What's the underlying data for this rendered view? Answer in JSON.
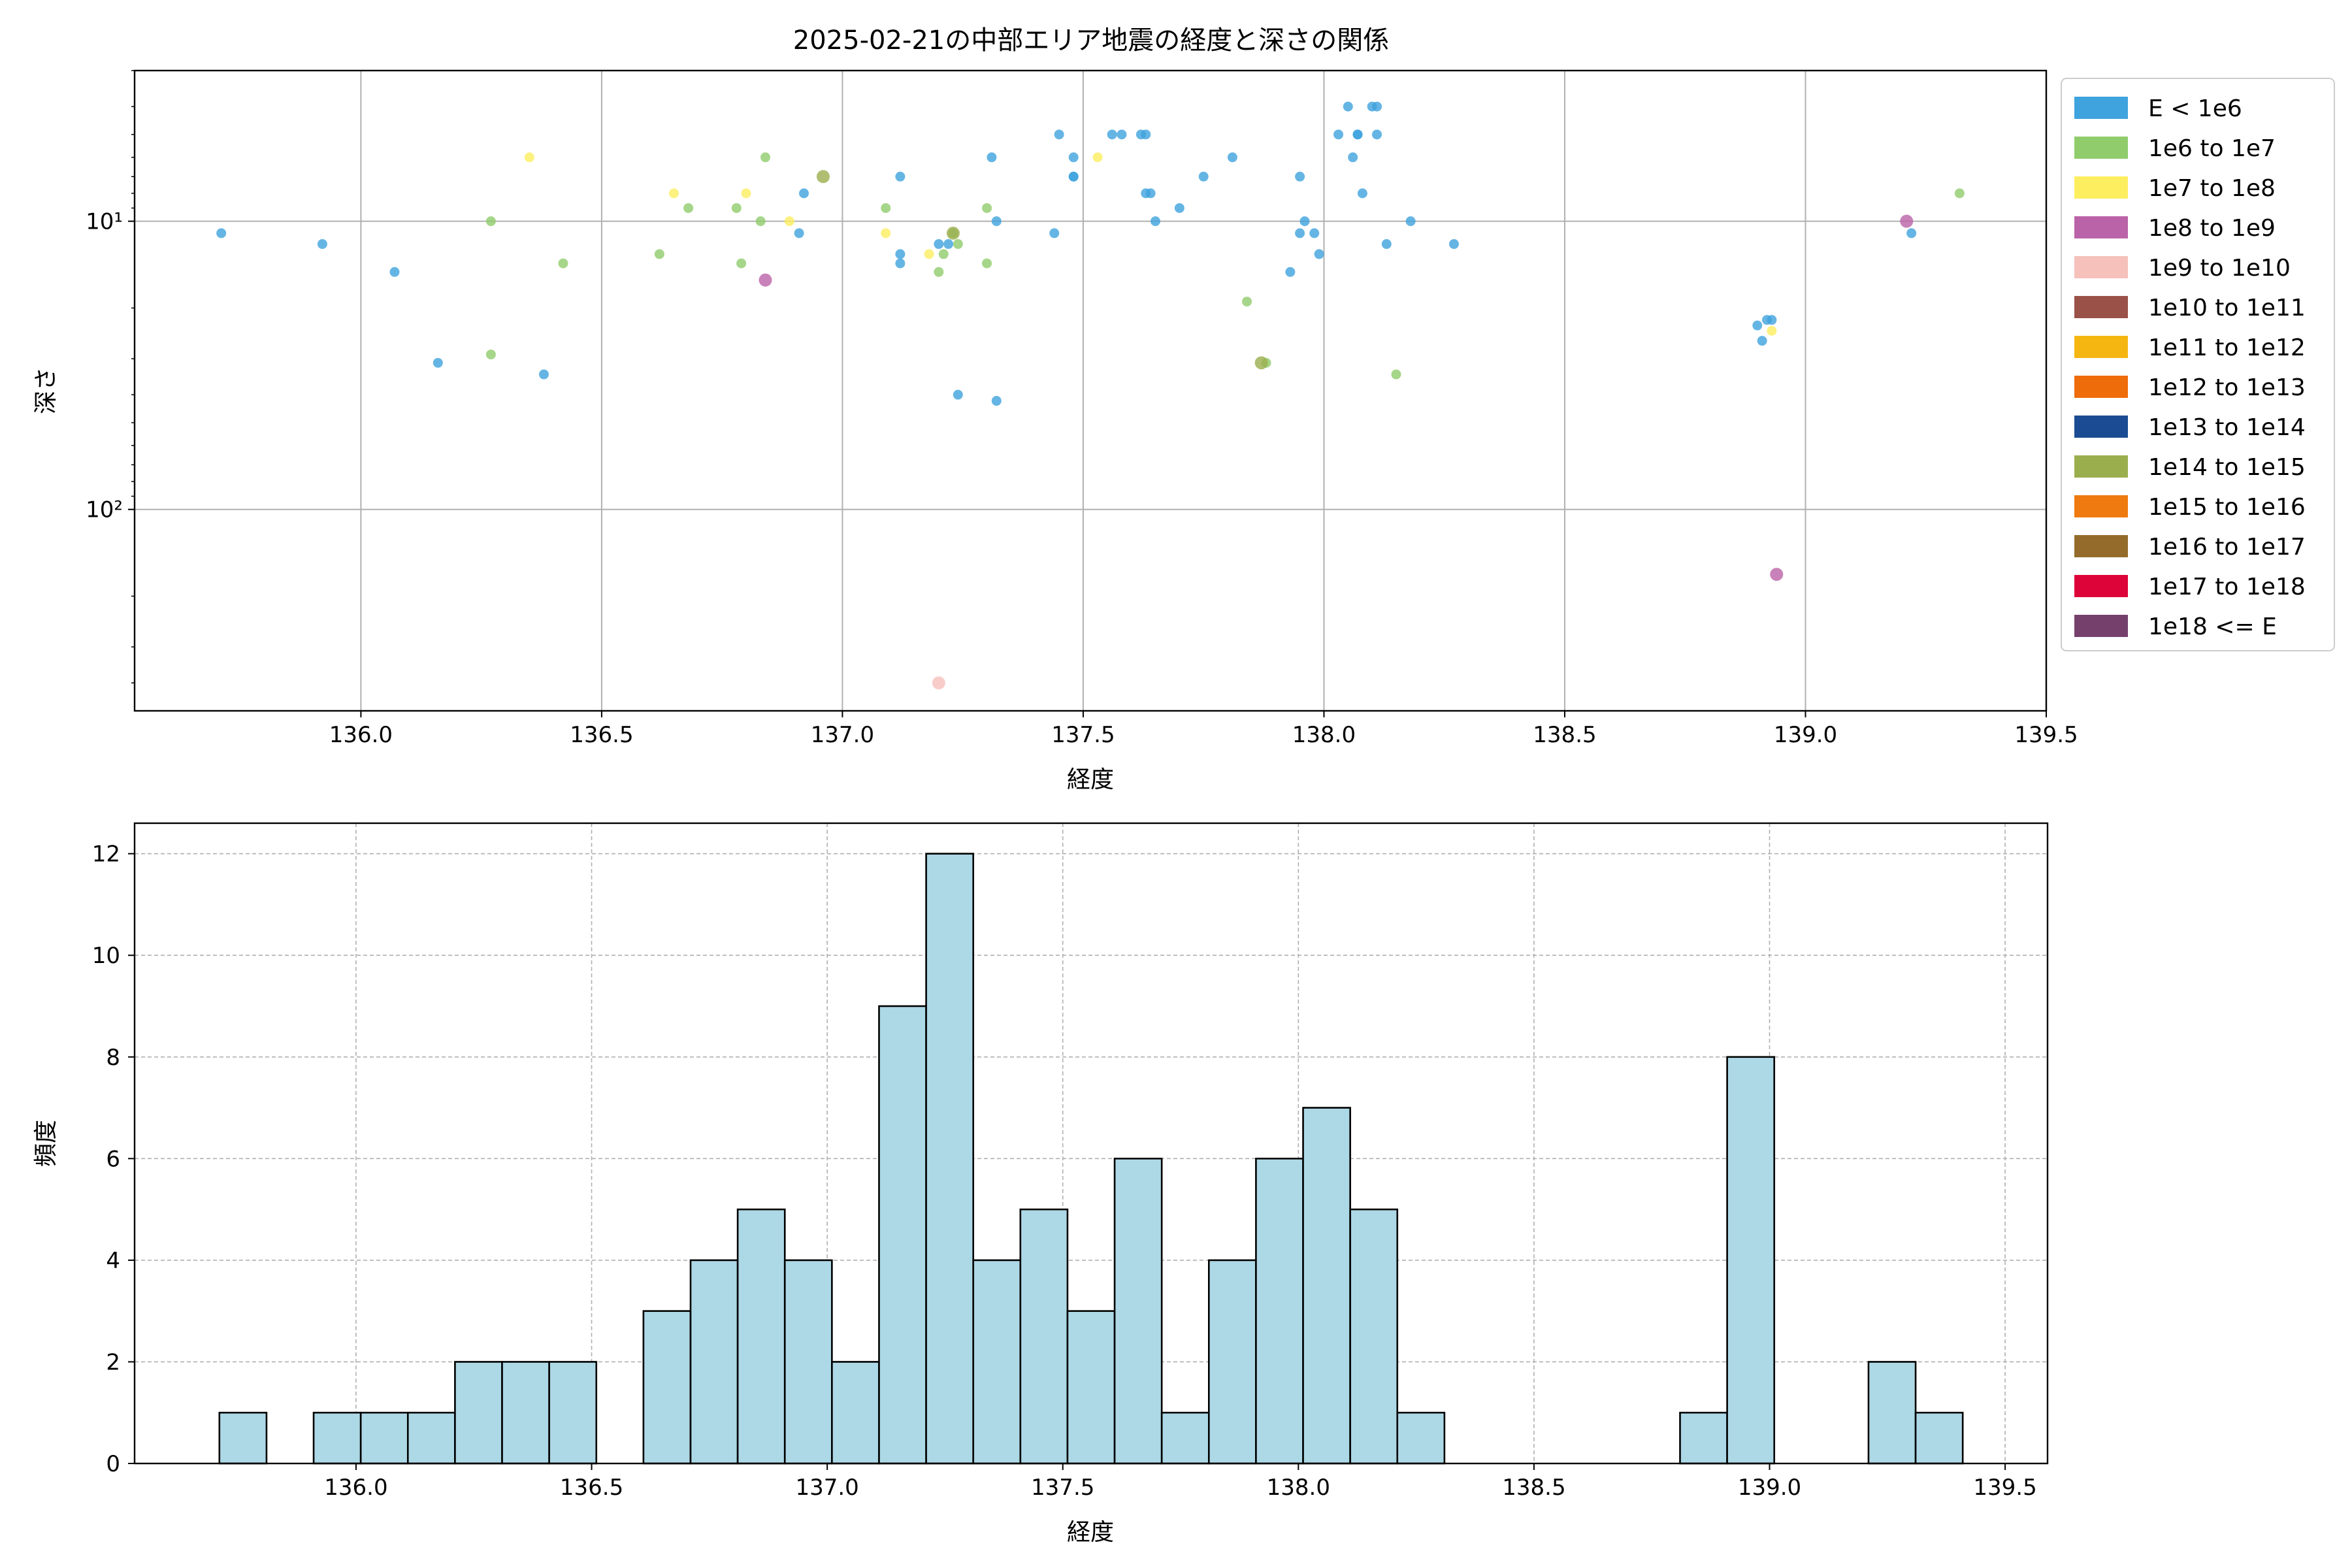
{
  "title": "2025-02-21の中部エリア地震の経度と深さの関係",
  "colors": {
    "hist_fill": "#add8e6",
    "hist_edge": "#000000",
    "grid": "#b0b0b0",
    "axis": "#000000"
  },
  "chart_data": [
    {
      "type": "scatter",
      "title": "2025-02-21の中部エリア地震の経度と深さの関係",
      "xlabel": "経度",
      "ylabel": "深さ",
      "xlim": [
        135.53,
        139.5
      ],
      "ylim": [
        500,
        3
      ],
      "yscale": "log",
      "y_inverted": true,
      "grid": true,
      "legend_position": "outside-right",
      "x_ticks": [
        "136.0",
        "136.5",
        "137.0",
        "137.5",
        "138.0",
        "138.5",
        "139.0",
        "139.5"
      ],
      "y_ticks": [
        "10¹",
        "10²"
      ],
      "legend": [
        {
          "label": "E < 1e6",
          "color": "#3fa3dd"
        },
        {
          "label": "1e6 to 1e7",
          "color": "#90cc6c"
        },
        {
          "label": "1e7 to 1e8",
          "color": "#fdee60"
        },
        {
          "label": "1e8 to 1e9",
          "color": "#bb63a8"
        },
        {
          "label": "1e9 to 1e10",
          "color": "#f6c1bb"
        },
        {
          "label": "1e10 to 1e11",
          "color": "#9a5148"
        },
        {
          "label": "1e11 to 1e12",
          "color": "#f6b612"
        },
        {
          "label": "1e12 to 1e13",
          "color": "#ef6c0b"
        },
        {
          "label": "1e13 to 1e14",
          "color": "#1b4c93"
        },
        {
          "label": "1e14 to 1e15",
          "color": "#9bae4e"
        },
        {
          "label": "1e15 to 1e16",
          "color": "#ef7a10"
        },
        {
          "label": "1e16 to 1e17",
          "color": "#946b2b"
        },
        {
          "label": "1e17 to 1e18",
          "color": "#dd0439"
        },
        {
          "label": "1e18 <= E",
          "color": "#75416c"
        }
      ],
      "series": [
        {
          "name": "E < 1e6",
          "color": "#3fa3dd",
          "points": [
            [
              135.71,
              11
            ],
            [
              135.92,
              12
            ],
            [
              136.07,
              15
            ],
            [
              136.16,
              31
            ],
            [
              136.38,
              34
            ],
            [
              136.92,
              8
            ],
            [
              136.91,
              11
            ],
            [
              137.12,
              13
            ],
            [
              137.12,
              7
            ],
            [
              137.12,
              14
            ],
            [
              137.2,
              12
            ],
            [
              137.22,
              12
            ],
            [
              137.24,
              40
            ],
            [
              137.31,
              6
            ],
            [
              137.32,
              10
            ],
            [
              137.32,
              42
            ],
            [
              137.45,
              5
            ],
            [
              137.44,
              11
            ],
            [
              137.48,
              6
            ],
            [
              137.48,
              7
            ],
            [
              137.48,
              7
            ],
            [
              137.56,
              5
            ],
            [
              137.58,
              5
            ],
            [
              137.62,
              5
            ],
            [
              137.63,
              5
            ],
            [
              137.63,
              8
            ],
            [
              137.64,
              8
            ],
            [
              137.65,
              10
            ],
            [
              137.7,
              9
            ],
            [
              137.75,
              7
            ],
            [
              137.81,
              6
            ],
            [
              137.93,
              15
            ],
            [
              137.95,
              7
            ],
            [
              137.95,
              11
            ],
            [
              137.96,
              10
            ],
            [
              137.98,
              11
            ],
            [
              137.99,
              13
            ],
            [
              138.03,
              5
            ],
            [
              138.05,
              4
            ],
            [
              138.06,
              6
            ],
            [
              138.07,
              5
            ],
            [
              138.07,
              5
            ],
            [
              138.08,
              8
            ],
            [
              138.1,
              4
            ],
            [
              138.11,
              4
            ],
            [
              138.11,
              5
            ],
            [
              138.13,
              12
            ],
            [
              138.18,
              10
            ],
            [
              138.27,
              12
            ],
            [
              138.9,
              23
            ],
            [
              138.91,
              26
            ],
            [
              138.92,
              22
            ],
            [
              138.93,
              22
            ],
            [
              139.22,
              11
            ]
          ]
        },
        {
          "name": "1e6 to 1e7",
          "color": "#90cc6c",
          "points": [
            [
              136.27,
              10
            ],
            [
              136.27,
              29
            ],
            [
              136.42,
              14
            ],
            [
              136.62,
              13
            ],
            [
              136.68,
              9
            ],
            [
              136.78,
              9
            ],
            [
              136.79,
              14
            ],
            [
              136.83,
              10
            ],
            [
              136.84,
              6
            ],
            [
              137.09,
              9
            ],
            [
              137.2,
              15
            ],
            [
              137.21,
              13
            ],
            [
              137.23,
              11
            ],
            [
              137.24,
              12
            ],
            [
              137.3,
              9
            ],
            [
              137.3,
              14
            ],
            [
              137.84,
              19
            ],
            [
              137.88,
              31
            ],
            [
              138.15,
              34
            ],
            [
              139.32,
              8
            ]
          ]
        },
        {
          "name": "1e7 to 1e8",
          "color": "#fdee60",
          "points": [
            [
              136.35,
              6
            ],
            [
              136.65,
              8
            ],
            [
              136.8,
              8
            ],
            [
              136.89,
              10
            ],
            [
              137.09,
              11
            ],
            [
              137.18,
              13
            ],
            [
              137.53,
              6
            ],
            [
              138.93,
              24
            ]
          ]
        },
        {
          "name": "1e8 to 1e9",
          "color": "#bb63a8",
          "points": [
            [
              136.84,
              16
            ],
            [
              139.21,
              10
            ],
            [
              138.94,
              168
            ]
          ]
        },
        {
          "name": "1e9 to 1e10",
          "color": "#f6c1bb",
          "points": [
            [
              137.2,
              400
            ]
          ]
        },
        {
          "name": "1e14 to 1e15",
          "color": "#9bae4e",
          "points": [
            [
              136.96,
              7
            ],
            [
              137.23,
              11
            ],
            [
              137.87,
              31
            ]
          ]
        }
      ]
    },
    {
      "type": "bar",
      "xlabel": "経度",
      "ylabel": "頻度",
      "xlim": [
        135.53,
        139.59
      ],
      "ylim": [
        0,
        12.6
      ],
      "grid": true,
      "grid_style": "dashed",
      "x_ticks": [
        "136.0",
        "136.5",
        "137.0",
        "137.5",
        "138.0",
        "138.5",
        "139.0",
        "139.5"
      ],
      "y_ticks": [
        "0",
        "2",
        "4",
        "6",
        "8",
        "10",
        "12"
      ],
      "bin_edges": [
        135.71,
        135.81,
        135.91,
        136.01,
        136.11,
        136.21,
        136.31,
        136.41,
        136.51,
        136.61,
        136.71,
        136.81,
        136.91,
        137.01,
        137.11,
        137.21,
        137.31,
        137.41,
        137.51,
        137.61,
        137.71,
        137.81,
        137.91,
        138.01,
        138.11,
        138.21,
        138.31,
        138.41,
        138.51,
        138.61,
        138.71,
        138.81,
        138.91,
        139.01,
        139.11,
        139.21,
        139.31,
        139.41
      ],
      "values": [
        1,
        0,
        1,
        1,
        1,
        2,
        2,
        2,
        0,
        3,
        4,
        5,
        4,
        2,
        9,
        12,
        4,
        5,
        3,
        6,
        1,
        4,
        6,
        7,
        5,
        1,
        0,
        0,
        0,
        0,
        0,
        1,
        8,
        0,
        0,
        2,
        1
      ]
    }
  ]
}
